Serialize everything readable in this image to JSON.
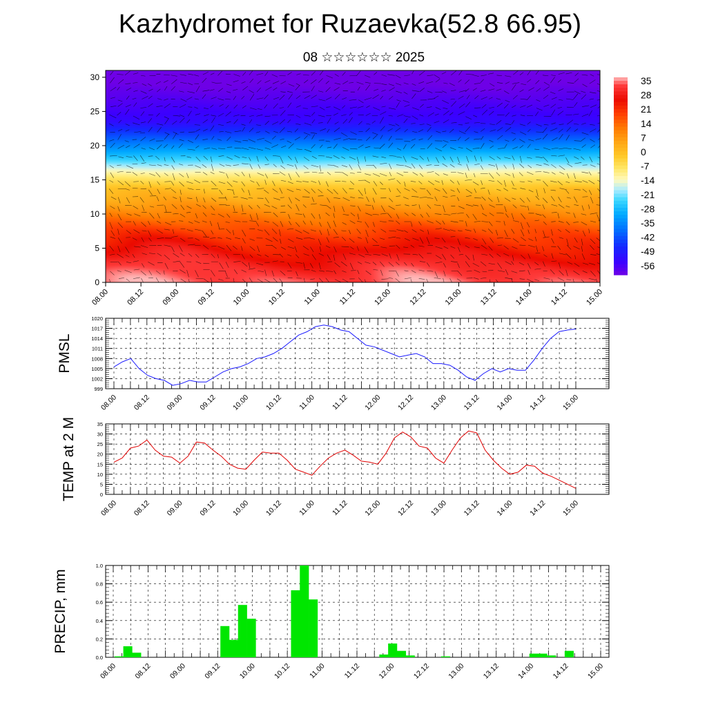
{
  "header": {
    "title": "Kazhydromet for Ruzaevka(52.8 66.95)",
    "subtitle": "08 ☆☆☆☆☆☆ 2025"
  },
  "time_ticks": [
    "08.00",
    "08.12",
    "09.00",
    "09.12",
    "10.00",
    "10.12",
    "11.00",
    "11.12",
    "12.00",
    "12.12",
    "13.00",
    "13.12",
    "14.00",
    "14.12",
    "15.00"
  ],
  "colors": {
    "pmsl_line": "#1a1aff",
    "temp_line": "#e00000",
    "precip_bar": "#00e600",
    "grid": "#000000"
  },
  "chart_data": [
    {
      "type": "heatmap",
      "name": "cross-section",
      "title": "",
      "xlabel": "",
      "ylabel": "",
      "x_ticks": [
        "08.00",
        "08.12",
        "09.00",
        "09.12",
        "10.00",
        "10.12",
        "11.00",
        "11.12",
        "12.00",
        "12.12",
        "13.00",
        "13.12",
        "14.00",
        "14.12",
        "15.00"
      ],
      "y_ticks": [
        0,
        5,
        10,
        15,
        20,
        25,
        30
      ],
      "ylim": [
        0,
        31
      ],
      "colorbar_labels": [
        "35",
        "28",
        "21",
        "14",
        "7",
        "0",
        "-7",
        "-14",
        "-21",
        "-28",
        "-35",
        "-42",
        "-49",
        "-56"
      ],
      "colorbar_range": [
        -60,
        38
      ],
      "warm_cores": [
        {
          "x": 0.75,
          "y": 4,
          "value": 31
        },
        {
          "x": 4.5,
          "y": 4,
          "value": 30
        },
        {
          "x": 8.5,
          "y": 4,
          "value": 32
        },
        {
          "x": 10.6,
          "y": 4,
          "value": 33
        },
        {
          "x": 13.0,
          "y": 6,
          "value": 22
        }
      ],
      "isotherm_heights": [
        {
          "value": 20,
          "height": 6.5
        },
        {
          "value": 10,
          "height": 10.5
        },
        {
          "value": 0,
          "height": 13.8
        },
        {
          "value": -10,
          "height": 15.8
        },
        {
          "value": -25,
          "height": 18.2
        },
        {
          "value": -40,
          "height": 21.0
        },
        {
          "value": -52,
          "height": 23.5
        }
      ],
      "cold_core": {
        "x_range": [
          7,
          11
        ],
        "y": 24.5,
        "value": -60
      }
    },
    {
      "type": "line",
      "name": "pmsl",
      "ylabel": "PMSL",
      "ylim": [
        999,
        1020
      ],
      "y_ticks": [
        999,
        1002,
        1005,
        1008,
        1011,
        1014,
        1017,
        1020
      ],
      "x_ticks": [
        "08.00",
        "08.12",
        "09.00",
        "09.12",
        "10.00",
        "10.12",
        "11.00",
        "11.12",
        "12.00",
        "12.12",
        "13.00",
        "13.12",
        "14.00",
        "14.12",
        "15.00"
      ],
      "series": [
        {
          "values": [
            1005.5,
            1007,
            1008,
            1005,
            1003,
            1002,
            1001.5,
            1000,
            1000.5,
            1001.5,
            1001,
            1001,
            1002.5,
            1004,
            1005,
            1005.5,
            1006.5,
            1008,
            1008.5,
            1009.5,
            1011,
            1013,
            1015,
            1016,
            1017.5,
            1018,
            1017.5,
            1016.5,
            1016,
            1014,
            1012,
            1011.5,
            1010.5,
            1009.5,
            1008.5,
            1009,
            1009.5,
            1008.5,
            1006.5,
            1006.5,
            1006,
            1004.5,
            1002.5,
            1001.5,
            1003.5,
            1005,
            1004,
            1005,
            1004.5,
            1004.5,
            1007.5,
            1011,
            1014,
            1016,
            1016.5,
            1016.8
          ]
        }
      ]
    },
    {
      "type": "line",
      "name": "temp2m",
      "ylabel": "TEMP at 2 M",
      "ylim": [
        0,
        35
      ],
      "y_ticks": [
        0,
        5,
        10,
        15,
        20,
        25,
        30,
        35
      ],
      "x_ticks": [
        "08.00",
        "08.12",
        "09.00",
        "09.12",
        "10.00",
        "10.12",
        "11.00",
        "11.12",
        "12.00",
        "12.12",
        "13.00",
        "13.12",
        "14.00",
        "14.12",
        "15.00"
      ],
      "series": [
        {
          "values": [
            16,
            18,
            23,
            24,
            27,
            22,
            19,
            18.5,
            15.5,
            19,
            26,
            25.5,
            22,
            19,
            15,
            13,
            12.5,
            17,
            21,
            20.5,
            20.5,
            17,
            12.5,
            11,
            9.5,
            14,
            18,
            20.5,
            22,
            19.5,
            16.5,
            16,
            15,
            20.5,
            28,
            31,
            28.5,
            24,
            23,
            18,
            15.5,
            22,
            28,
            31.5,
            30.5,
            22,
            17,
            13,
            10,
            11,
            14.5,
            14,
            10.5,
            9,
            7,
            5,
            3
          ]
        }
      ]
    },
    {
      "type": "bar",
      "name": "precip",
      "ylabel": "PRECIP, mm",
      "ylim": [
        0,
        1.0
      ],
      "y_ticks": [
        0.0,
        0.2,
        0.4,
        0.6,
        0.8,
        1.0
      ],
      "x_ticks": [
        "08.00",
        "08.12",
        "09.00",
        "09.12",
        "10.00",
        "10.12",
        "11.00",
        "11.12",
        "12.00",
        "12.12",
        "13.00",
        "13.12",
        "14.00",
        "14.12",
        "15.00"
      ],
      "values": [
        0,
        0.01,
        0.12,
        0.05,
        0,
        0,
        0,
        0,
        0,
        0,
        0,
        0,
        0,
        0.34,
        0.19,
        0.57,
        0.42,
        0,
        0,
        0,
        0,
        0.73,
        1.0,
        0.63,
        0,
        0,
        0,
        0,
        0,
        0,
        0,
        0.03,
        0.15,
        0.07,
        0.02,
        0,
        0,
        0,
        0.01,
        0,
        0,
        0,
        0,
        0,
        0,
        0,
        0,
        0,
        0.04,
        0.04,
        0.02,
        0,
        0.07,
        0,
        0,
        0
      ]
    }
  ]
}
